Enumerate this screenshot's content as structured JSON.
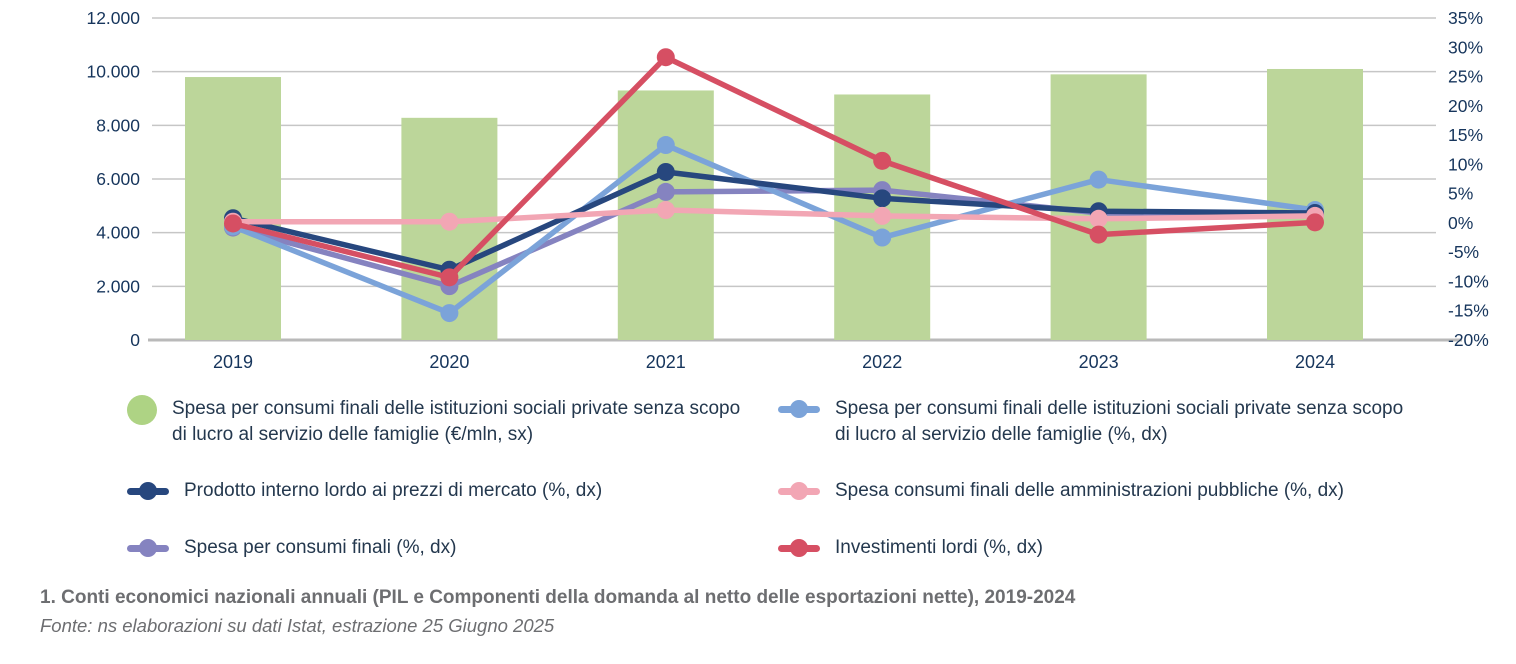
{
  "chart_data": {
    "type": "combo-bar-line",
    "title": "",
    "categories": [
      "2019",
      "2020",
      "2021",
      "2022",
      "2023",
      "2024"
    ],
    "bar_series": {
      "name": "Spesa per consumi finali delle istituzioni sociali private senza scopo di lucro al servizio delle famiglie (€/mln, sx)",
      "axis": "left",
      "color": "#bcd69a",
      "values": [
        9800,
        8280,
        9300,
        9150,
        9900,
        10100
      ]
    },
    "line_series": [
      {
        "name": "Spesa per consumi finali (%, dx)",
        "axis": "right",
        "color": "#8583c0",
        "values": [
          -0.8,
          -10.8,
          5.3,
          5.6,
          1.7,
          1.4
        ]
      },
      {
        "name": "Spesa per consumi finali delle istituzioni sociali private senza scopo di lucro al servizio delle famiglie (%, dx)",
        "axis": "right",
        "color": "#7ba3d9",
        "values": [
          -0.6,
          -15.4,
          13.3,
          -2.5,
          7.4,
          2.2
        ]
      },
      {
        "name": "Prodotto interno lordo ai prezzi di mercato (%, dx)",
        "axis": "right",
        "color": "#27477e",
        "values": [
          0.8,
          -8.0,
          8.7,
          4.2,
          2.0,
          1.7
        ]
      },
      {
        "name": "Spesa consumi finali delle amministrazioni pubbliche (%, dx)",
        "axis": "right",
        "color": "#f2a6b4",
        "values": [
          0.2,
          0.2,
          2.2,
          1.2,
          0.7,
          1.2
        ]
      },
      {
        "name": "Investimenti lordi (%, dx)",
        "axis": "right",
        "color": "#d64f63",
        "values": [
          -0.1,
          -9.3,
          28.3,
          10.6,
          -2.0,
          0.1
        ]
      }
    ],
    "left_axis": {
      "min": 0,
      "max": 12000,
      "step": 2000,
      "tick_labels": [
        "0",
        "2.000",
        "4.000",
        "6.000",
        "8.000",
        "10.000",
        "12.000"
      ]
    },
    "right_axis": {
      "min": -20,
      "max": 35,
      "step": 5,
      "tick_labels": [
        "35%",
        "30%",
        "25%",
        "20%",
        "15%",
        "10%",
        "5%",
        "0%",
        "-5%",
        "-10%",
        "-15%",
        "-20%"
      ]
    },
    "grid": true,
    "legend_position": "bottom",
    "tick_color": "#16355c"
  },
  "legend": {
    "items": [
      {
        "marker": "circle",
        "color": "#aed384",
        "label": "Spesa per consumi finali delle istituzioni sociali private senza scopo di lucro al servizio delle famiglie (€/mln, sx)"
      },
      {
        "marker": "dotline",
        "color": "#7ba3d9",
        "label": "Spesa per consumi finali delle istituzioni sociali private senza scopo di lucro al servizio delle famiglie (%, dx)"
      },
      {
        "marker": "dotline",
        "color": "#27477e",
        "label": "Prodotto interno lordo ai prezzi di mercato (%, dx)"
      },
      {
        "marker": "dotline",
        "color": "#f2a6b4",
        "label": "Spesa consumi finali delle amministrazioni pubbliche (%, dx)"
      },
      {
        "marker": "dotline",
        "color": "#8583c0",
        "label": "Spesa per consumi finali (%, dx)"
      },
      {
        "marker": "dotline",
        "color": "#d64f63",
        "label": "Investimenti lordi (%, dx)"
      }
    ]
  },
  "caption": {
    "title": "1. Conti economici nazionali annuali (PIL e Componenti della domanda al netto delle esportazioni nette), 2019-2024",
    "source": "Fonte: ns elaborazioni su dati Istat, estrazione 25 Giugno 2025"
  }
}
